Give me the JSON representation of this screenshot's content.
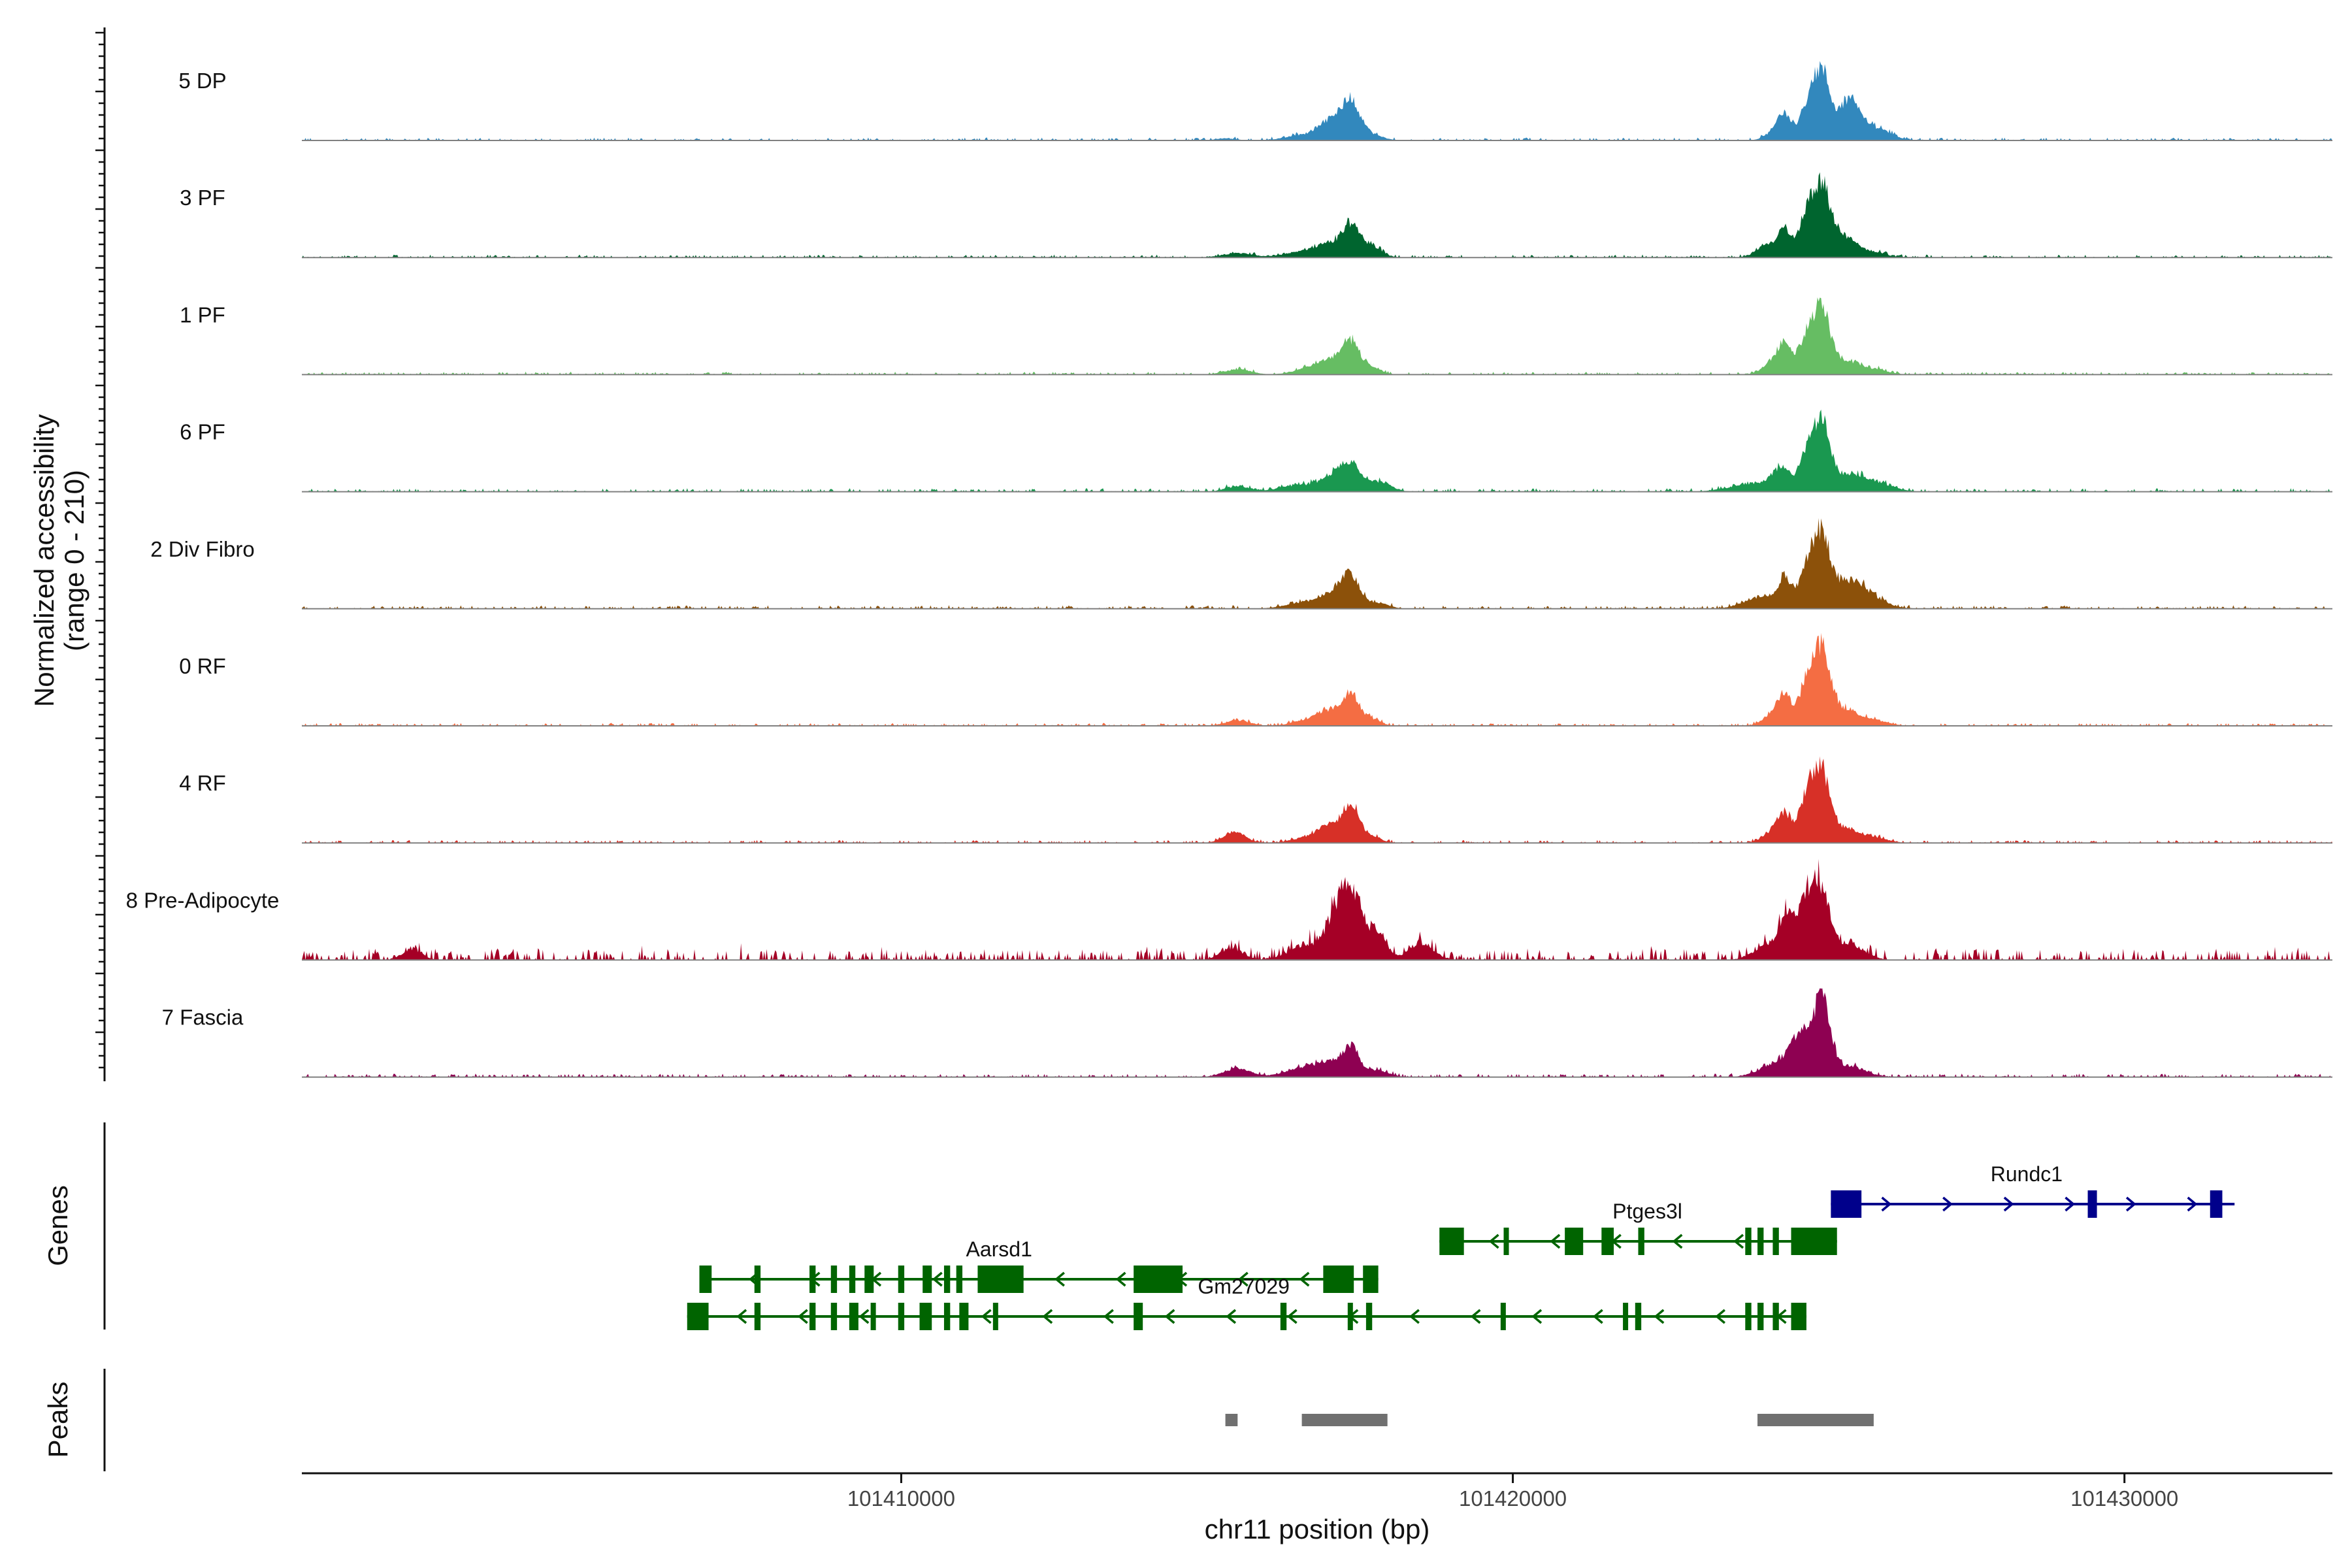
{
  "chart_data": {
    "type": "area",
    "title": "",
    "chromosome": "chr11",
    "xlabel": "chr11 position (bp)",
    "ylabel_line1": "Normalized accessibility",
    "ylabel_line2": "(range 0 - 210)",
    "ylim": [
      0,
      210
    ],
    "xlim": [
      101400200,
      101433400
    ],
    "x_ticks": [
      101410000,
      101420000,
      101430000
    ],
    "x_tick_labels": [
      "101410000",
      "101420000",
      "101430000"
    ],
    "series": [
      {
        "name": "5 DP",
        "color": "#3288BD",
        "noise": 2.5,
        "peaks": [
          [
            101415300,
            160,
            4
          ],
          [
            101416600,
            300,
            10
          ],
          [
            101416950,
            160,
            14
          ],
          [
            101417100,
            220,
            22
          ],
          [
            101417350,
            150,
            66
          ],
          [
            101417700,
            180,
            10
          ],
          [
            101424300,
            160,
            16
          ],
          [
            101424450,
            110,
            42
          ],
          [
            101424800,
            120,
            52
          ],
          [
            101425050,
            140,
            128
          ],
          [
            101425500,
            160,
            72
          ],
          [
            101425900,
            260,
            24
          ]
        ]
      },
      {
        "name": "3 PF",
        "color": "#00652F",
        "noise": 2.5,
        "peaks": [
          [
            101415500,
            250,
            8
          ],
          [
            101416600,
            300,
            12
          ],
          [
            101417000,
            180,
            22
          ],
          [
            101417350,
            140,
            60
          ],
          [
            101417700,
            160,
            20
          ],
          [
            101424200,
            200,
            22
          ],
          [
            101424450,
            110,
            46
          ],
          [
            101424800,
            120,
            72
          ],
          [
            101425050,
            140,
            130
          ],
          [
            101425400,
            180,
            36
          ],
          [
            101425800,
            240,
            12
          ]
        ]
      },
      {
        "name": "1 PF",
        "color": "#66BD63",
        "noise": 2.5,
        "peaks": [
          [
            101415500,
            220,
            10
          ],
          [
            101416700,
            260,
            12
          ],
          [
            101417000,
            160,
            22
          ],
          [
            101417350,
            140,
            62
          ],
          [
            101417700,
            140,
            14
          ],
          [
            101424300,
            180,
            26
          ],
          [
            101424450,
            110,
            42
          ],
          [
            101424800,
            120,
            62
          ],
          [
            101425050,
            140,
            118
          ],
          [
            101425450,
            200,
            24
          ],
          [
            101425900,
            220,
            10
          ]
        ]
      },
      {
        "name": "6 PF",
        "color": "#1A9850",
        "noise": 3,
        "peaks": [
          [
            101415500,
            200,
            10
          ],
          [
            101416500,
            300,
            12
          ],
          [
            101417050,
            200,
            26
          ],
          [
            101417350,
            150,
            48
          ],
          [
            101417800,
            200,
            18
          ],
          [
            101424000,
            400,
            16
          ],
          [
            101424400,
            140,
            36
          ],
          [
            101424800,
            120,
            62
          ],
          [
            101425050,
            140,
            118
          ],
          [
            101425500,
            280,
            30
          ],
          [
            101426000,
            260,
            12
          ]
        ]
      },
      {
        "name": "2 Div Fibro",
        "color": "#8C510A",
        "noise": 3,
        "peaks": [
          [
            101416600,
            300,
            12
          ],
          [
            101417050,
            180,
            26
          ],
          [
            101417350,
            150,
            58
          ],
          [
            101417800,
            180,
            10
          ],
          [
            101424100,
            300,
            22
          ],
          [
            101424450,
            110,
            48
          ],
          [
            101424800,
            120,
            62
          ],
          [
            101425050,
            140,
            132
          ],
          [
            101425500,
            240,
            48
          ],
          [
            101425900,
            240,
            16
          ]
        ]
      },
      {
        "name": "0 RF",
        "color": "#F46D43",
        "noise": 2.5,
        "peaks": [
          [
            101415500,
            200,
            10
          ],
          [
            101416700,
            260,
            12
          ],
          [
            101417000,
            160,
            22
          ],
          [
            101417350,
            140,
            60
          ],
          [
            101417700,
            140,
            12
          ],
          [
            101424300,
            180,
            24
          ],
          [
            101424450,
            110,
            42
          ],
          [
            101424800,
            120,
            72
          ],
          [
            101425050,
            140,
            140
          ],
          [
            101425450,
            200,
            30
          ],
          [
            101425900,
            220,
            10
          ]
        ]
      },
      {
        "name": "4 RF",
        "color": "#D73027",
        "noise": 2.5,
        "peaks": [
          [
            101415450,
            180,
            20
          ],
          [
            101416700,
            260,
            12
          ],
          [
            101417000,
            160,
            26
          ],
          [
            101417350,
            140,
            70
          ],
          [
            101417700,
            140,
            12
          ],
          [
            101424300,
            180,
            24
          ],
          [
            101424450,
            110,
            40
          ],
          [
            101424800,
            120,
            76
          ],
          [
            101425050,
            140,
            130
          ],
          [
            101425450,
            200,
            26
          ],
          [
            101425900,
            220,
            10
          ]
        ]
      },
      {
        "name": "8 Pre-Adipocyte",
        "color": "#A50026",
        "noise": 10,
        "peaks": [
          [
            101402000,
            160,
            20
          ],
          [
            101415400,
            180,
            22
          ],
          [
            101416600,
            280,
            24
          ],
          [
            101417100,
            180,
            70
          ],
          [
            101417350,
            140,
            112
          ],
          [
            101417750,
            160,
            60
          ],
          [
            101418500,
            200,
            32
          ],
          [
            101424200,
            240,
            30
          ],
          [
            101424500,
            120,
            70
          ],
          [
            101424800,
            120,
            100
          ],
          [
            101425050,
            140,
            126
          ],
          [
            101425500,
            240,
            30
          ]
        ]
      },
      {
        "name": "7 Fascia",
        "color": "#8E0152",
        "noise": 3,
        "peaks": [
          [
            101415500,
            220,
            16
          ],
          [
            101416600,
            300,
            18
          ],
          [
            101417000,
            180,
            20
          ],
          [
            101417350,
            140,
            56
          ],
          [
            101417800,
            180,
            12
          ],
          [
            101424300,
            260,
            26
          ],
          [
            101424700,
            160,
            72
          ],
          [
            101425050,
            140,
            140
          ],
          [
            101425500,
            260,
            20
          ]
        ]
      }
    ],
    "genes": [
      {
        "name": "Rundc1",
        "strand": "+",
        "color": "#00008B",
        "start": 101425200,
        "end": 101431800,
        "exons": [
          [
            101425200,
            101425700
          ],
          [
            101429400,
            101429550
          ],
          [
            101431400,
            101431600
          ]
        ]
      },
      {
        "name": "Ptges3l",
        "strand": "-",
        "color": "#006400",
        "start": 101418800,
        "end": 101425300,
        "exons": [
          [
            101418800,
            101419200
          ],
          [
            101419850,
            101419900
          ],
          [
            101420850,
            101421150
          ],
          [
            101421450,
            101421650
          ],
          [
            101422050,
            101422150
          ],
          [
            101423800,
            101423900
          ],
          [
            101424000,
            101424100
          ],
          [
            101424250,
            101424350
          ],
          [
            101424550,
            101425300
          ]
        ]
      },
      {
        "name": "Aarsd1",
        "strand": "-",
        "color": "#006400",
        "start": 101406700,
        "end": 101417800,
        "exons": [
          [
            101406700,
            101406900
          ],
          [
            101407600,
            101407700
          ],
          [
            101408500,
            101408600
          ],
          [
            101408850,
            101408950
          ],
          [
            101409150,
            101409250
          ],
          [
            101409400,
            101409550
          ],
          [
            101409950,
            101410050
          ],
          [
            101410350,
            101410500
          ],
          [
            101410700,
            101410800
          ],
          [
            101410900,
            101411000
          ],
          [
            101411250,
            101412000
          ],
          [
            101413800,
            101414600
          ],
          [
            101416900,
            101417400
          ],
          [
            101417550,
            101417800
          ]
        ]
      },
      {
        "name": "Gm27029",
        "strand": "-",
        "color": "#006400",
        "start": 101406500,
        "end": 101424800,
        "exons": [
          [
            101406500,
            101406850
          ],
          [
            101407600,
            101407700
          ],
          [
            101408500,
            101408600
          ],
          [
            101408850,
            101408950
          ],
          [
            101409150,
            101409300
          ],
          [
            101409500,
            101409550
          ],
          [
            101409950,
            101410050
          ],
          [
            101410300,
            101410500
          ],
          [
            101410700,
            101410800
          ],
          [
            101410950,
            101411100
          ],
          [
            101411500,
            101411550
          ],
          [
            101413800,
            101413950
          ],
          [
            101416200,
            101416300
          ],
          [
            101417300,
            101417350
          ],
          [
            101417600,
            101417700
          ],
          [
            101419800,
            101419850
          ],
          [
            101421800,
            101421850
          ],
          [
            101422000,
            101422100
          ],
          [
            101423800,
            101423900
          ],
          [
            101424000,
            101424100
          ],
          [
            101424250,
            101424350
          ],
          [
            101424550,
            101424800
          ]
        ]
      }
    ],
    "peaks_track": [
      [
        101415300,
        101415500
      ],
      [
        101416550,
        101417950
      ],
      [
        101424000,
        101425900
      ]
    ],
    "panels": [
      "Genes",
      "Peaks"
    ]
  }
}
